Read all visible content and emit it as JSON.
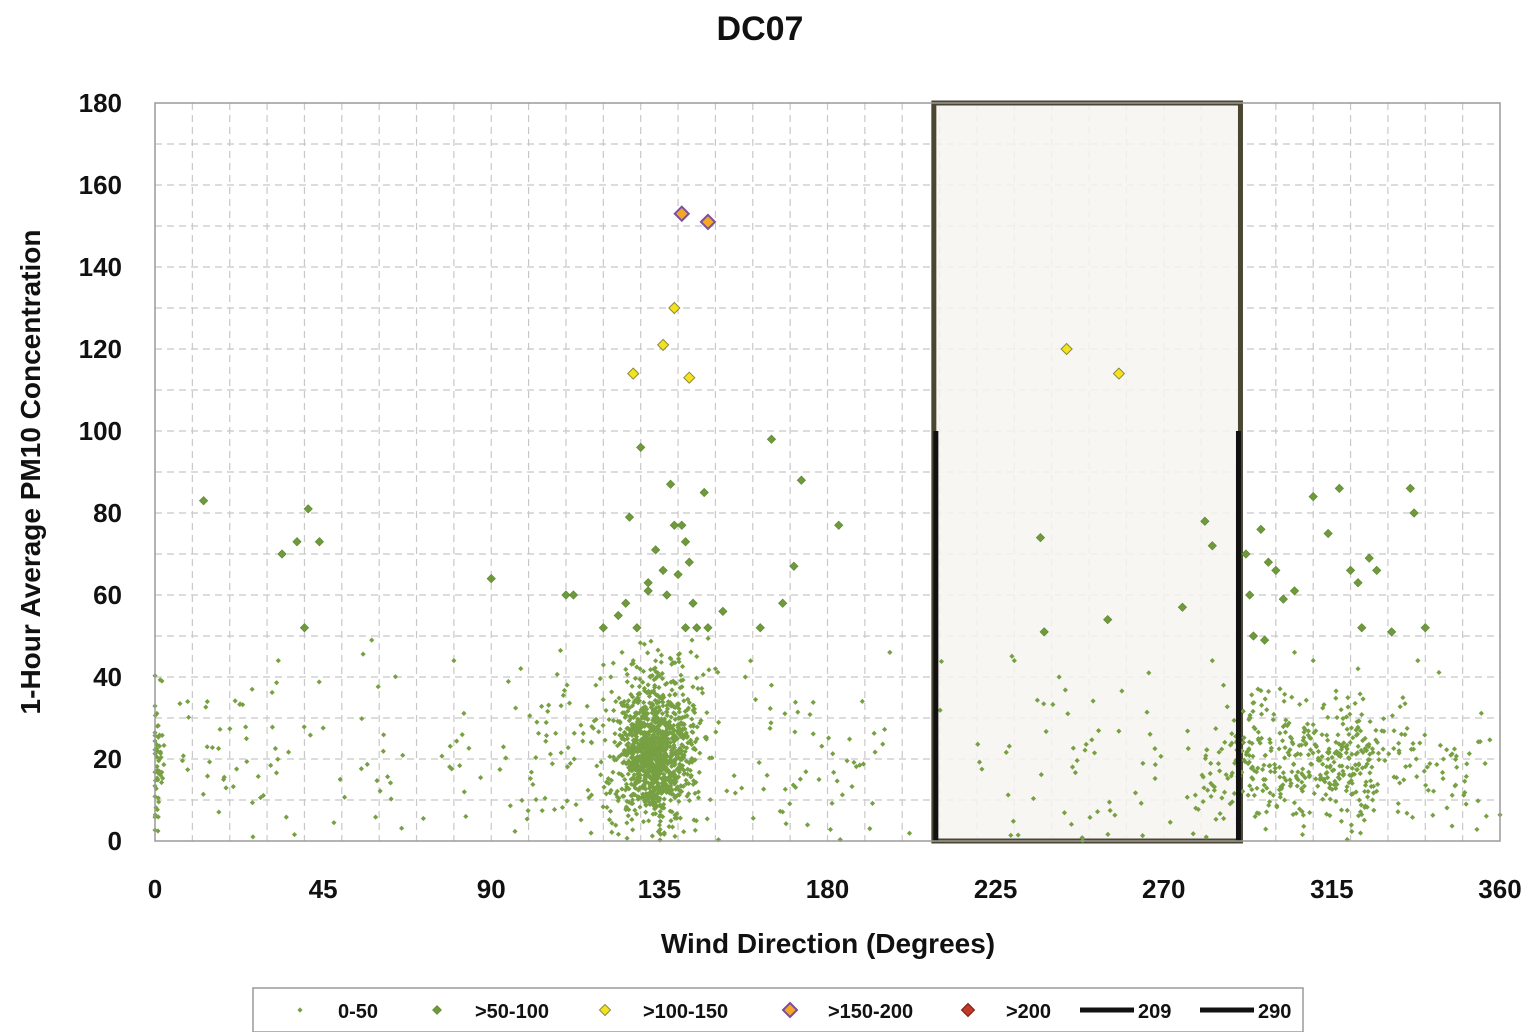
{
  "chart_data": {
    "type": "scatter",
    "title": "DC07",
    "xlabel": "Wind Direction (Degrees)",
    "ylabel": "1-Hour Average PM10 Concentration",
    "xlim": [
      0,
      360
    ],
    "ylim": [
      0,
      180
    ],
    "x_ticks": [
      0,
      45,
      90,
      135,
      180,
      225,
      270,
      315,
      360
    ],
    "y_ticks": [
      0,
      20,
      40,
      60,
      80,
      100,
      120,
      140,
      160,
      180
    ],
    "grid": true,
    "legend_position": "bottom",
    "sector": {
      "start": 209,
      "end": 290,
      "fill": "#f7f5f0",
      "border": "#4a4632"
    },
    "colors": {
      "low": "#77a043",
      "mid": "#6f9a3c",
      "high": "#f4e31a",
      "vhigh": "#f5a623",
      "vhigh_border": "#7a4fa0",
      "extreme": "#c0392b"
    },
    "series": [
      {
        "name": "0-50",
        "marker": "small-dot",
        "clusters": [
          {
            "cx": 133,
            "cy": 21,
            "sx": 5,
            "sy": 8,
            "n": 1050
          },
          {
            "cx": 138,
            "cy": 30,
            "sx": 6,
            "sy": 9,
            "n": 160
          },
          {
            "cx": 315,
            "cy": 20,
            "sx": 12,
            "sy": 8,
            "n": 360
          },
          {
            "cx": 292,
            "cy": 20,
            "sx": 4,
            "sy": 7,
            "n": 80
          },
          {
            "cx": 0.7,
            "cy": 18,
            "sx": 0.6,
            "sy": 9,
            "n": 45
          },
          {
            "cx": 22,
            "cy": 22,
            "sx": 14,
            "sy": 11,
            "n": 50
          },
          {
            "cx": 70,
            "cy": 18,
            "sx": 18,
            "sy": 12,
            "n": 45
          },
          {
            "cx": 112,
            "cy": 22,
            "sx": 8,
            "sy": 12,
            "n": 70
          },
          {
            "cx": 175,
            "cy": 20,
            "sx": 14,
            "sy": 10,
            "n": 60
          },
          {
            "cx": 250,
            "cy": 20,
            "sx": 22,
            "sy": 12,
            "n": 60
          },
          {
            "cx": 282,
            "cy": 14,
            "sx": 4,
            "sy": 6,
            "n": 25
          },
          {
            "cx": 350,
            "cy": 14,
            "sx": 6,
            "sy": 8,
            "n": 30
          }
        ],
        "points": [
          [
            122,
            40
          ],
          [
            125,
            46
          ],
          [
            128,
            44
          ],
          [
            131,
            48
          ],
          [
            145,
            45
          ],
          [
            150,
            42
          ],
          [
            118,
            38
          ],
          [
            158,
            40
          ],
          [
            165,
            38
          ],
          [
            310,
            44
          ],
          [
            322,
            42
          ],
          [
            338,
            44
          ],
          [
            305,
            46
          ],
          [
            14,
            34
          ],
          [
            26,
            37
          ],
          [
            33,
            44
          ],
          [
            58,
            49
          ],
          [
            80,
            44
          ],
          [
            230,
            44
          ],
          [
            242,
            40
          ],
          [
            266,
            41
          ],
          [
            283,
            44
          ],
          [
            286,
            38
          ]
        ]
      },
      {
        "name": ">50-100",
        "marker": "diamond",
        "points": [
          [
            13,
            83
          ],
          [
            34,
            70
          ],
          [
            38,
            73
          ],
          [
            41,
            81
          ],
          [
            44,
            73
          ],
          [
            40,
            52
          ],
          [
            90,
            64
          ],
          [
            110,
            60
          ],
          [
            112,
            60
          ],
          [
            120,
            52
          ],
          [
            124,
            55
          ],
          [
            126,
            58
          ],
          [
            127,
            79
          ],
          [
            130,
            96
          ],
          [
            132,
            61
          ],
          [
            134,
            71
          ],
          [
            136,
            66
          ],
          [
            138,
            87
          ],
          [
            139,
            77
          ],
          [
            140,
            65
          ],
          [
            141,
            77
          ],
          [
            142,
            73
          ],
          [
            143,
            68
          ],
          [
            144,
            58
          ],
          [
            145,
            52
          ],
          [
            147,
            85
          ],
          [
            148,
            52
          ],
          [
            152,
            56
          ],
          [
            162,
            52
          ],
          [
            165,
            98
          ],
          [
            168,
            58
          ],
          [
            171,
            67
          ],
          [
            173,
            88
          ],
          [
            183,
            77
          ],
          [
            132,
            63
          ],
          [
            129,
            52
          ],
          [
            137,
            60
          ],
          [
            142,
            52
          ],
          [
            237,
            74
          ],
          [
            238,
            51
          ],
          [
            255,
            54
          ],
          [
            275,
            57
          ],
          [
            281,
            78
          ],
          [
            283,
            72
          ],
          [
            293,
            60
          ],
          [
            294,
            50
          ],
          [
            296,
            76
          ],
          [
            298,
            68
          ],
          [
            300,
            66
          ],
          [
            302,
            59
          ],
          [
            305,
            61
          ],
          [
            310,
            84
          ],
          [
            314,
            75
          ],
          [
            317,
            86
          ],
          [
            320,
            66
          ],
          [
            322,
            63
          ],
          [
            323,
            52
          ],
          [
            325,
            69
          ],
          [
            327,
            66
          ],
          [
            331,
            51
          ],
          [
            336,
            86
          ],
          [
            337,
            80
          ],
          [
            340,
            52
          ],
          [
            292,
            70
          ],
          [
            297,
            49
          ]
        ]
      },
      {
        "name": ">100-150",
        "marker": "diamond-yellow",
        "points": [
          [
            128,
            114
          ],
          [
            136,
            121
          ],
          [
            139,
            130
          ],
          [
            143,
            113
          ],
          [
            244,
            120
          ],
          [
            258,
            114
          ]
        ]
      },
      {
        "name": ">150-200",
        "marker": "diamond-orange",
        "points": [
          [
            141,
            153
          ],
          [
            148,
            151
          ]
        ]
      },
      {
        "name": ">200",
        "marker": "diamond-red",
        "points": []
      },
      {
        "name": "209",
        "marker": "line",
        "points": [
          [
            209,
            0
          ],
          [
            209,
            100
          ]
        ]
      },
      {
        "name": "290",
        "marker": "line",
        "points": [
          [
            290,
            0
          ],
          [
            290,
            100
          ]
        ]
      }
    ]
  }
}
